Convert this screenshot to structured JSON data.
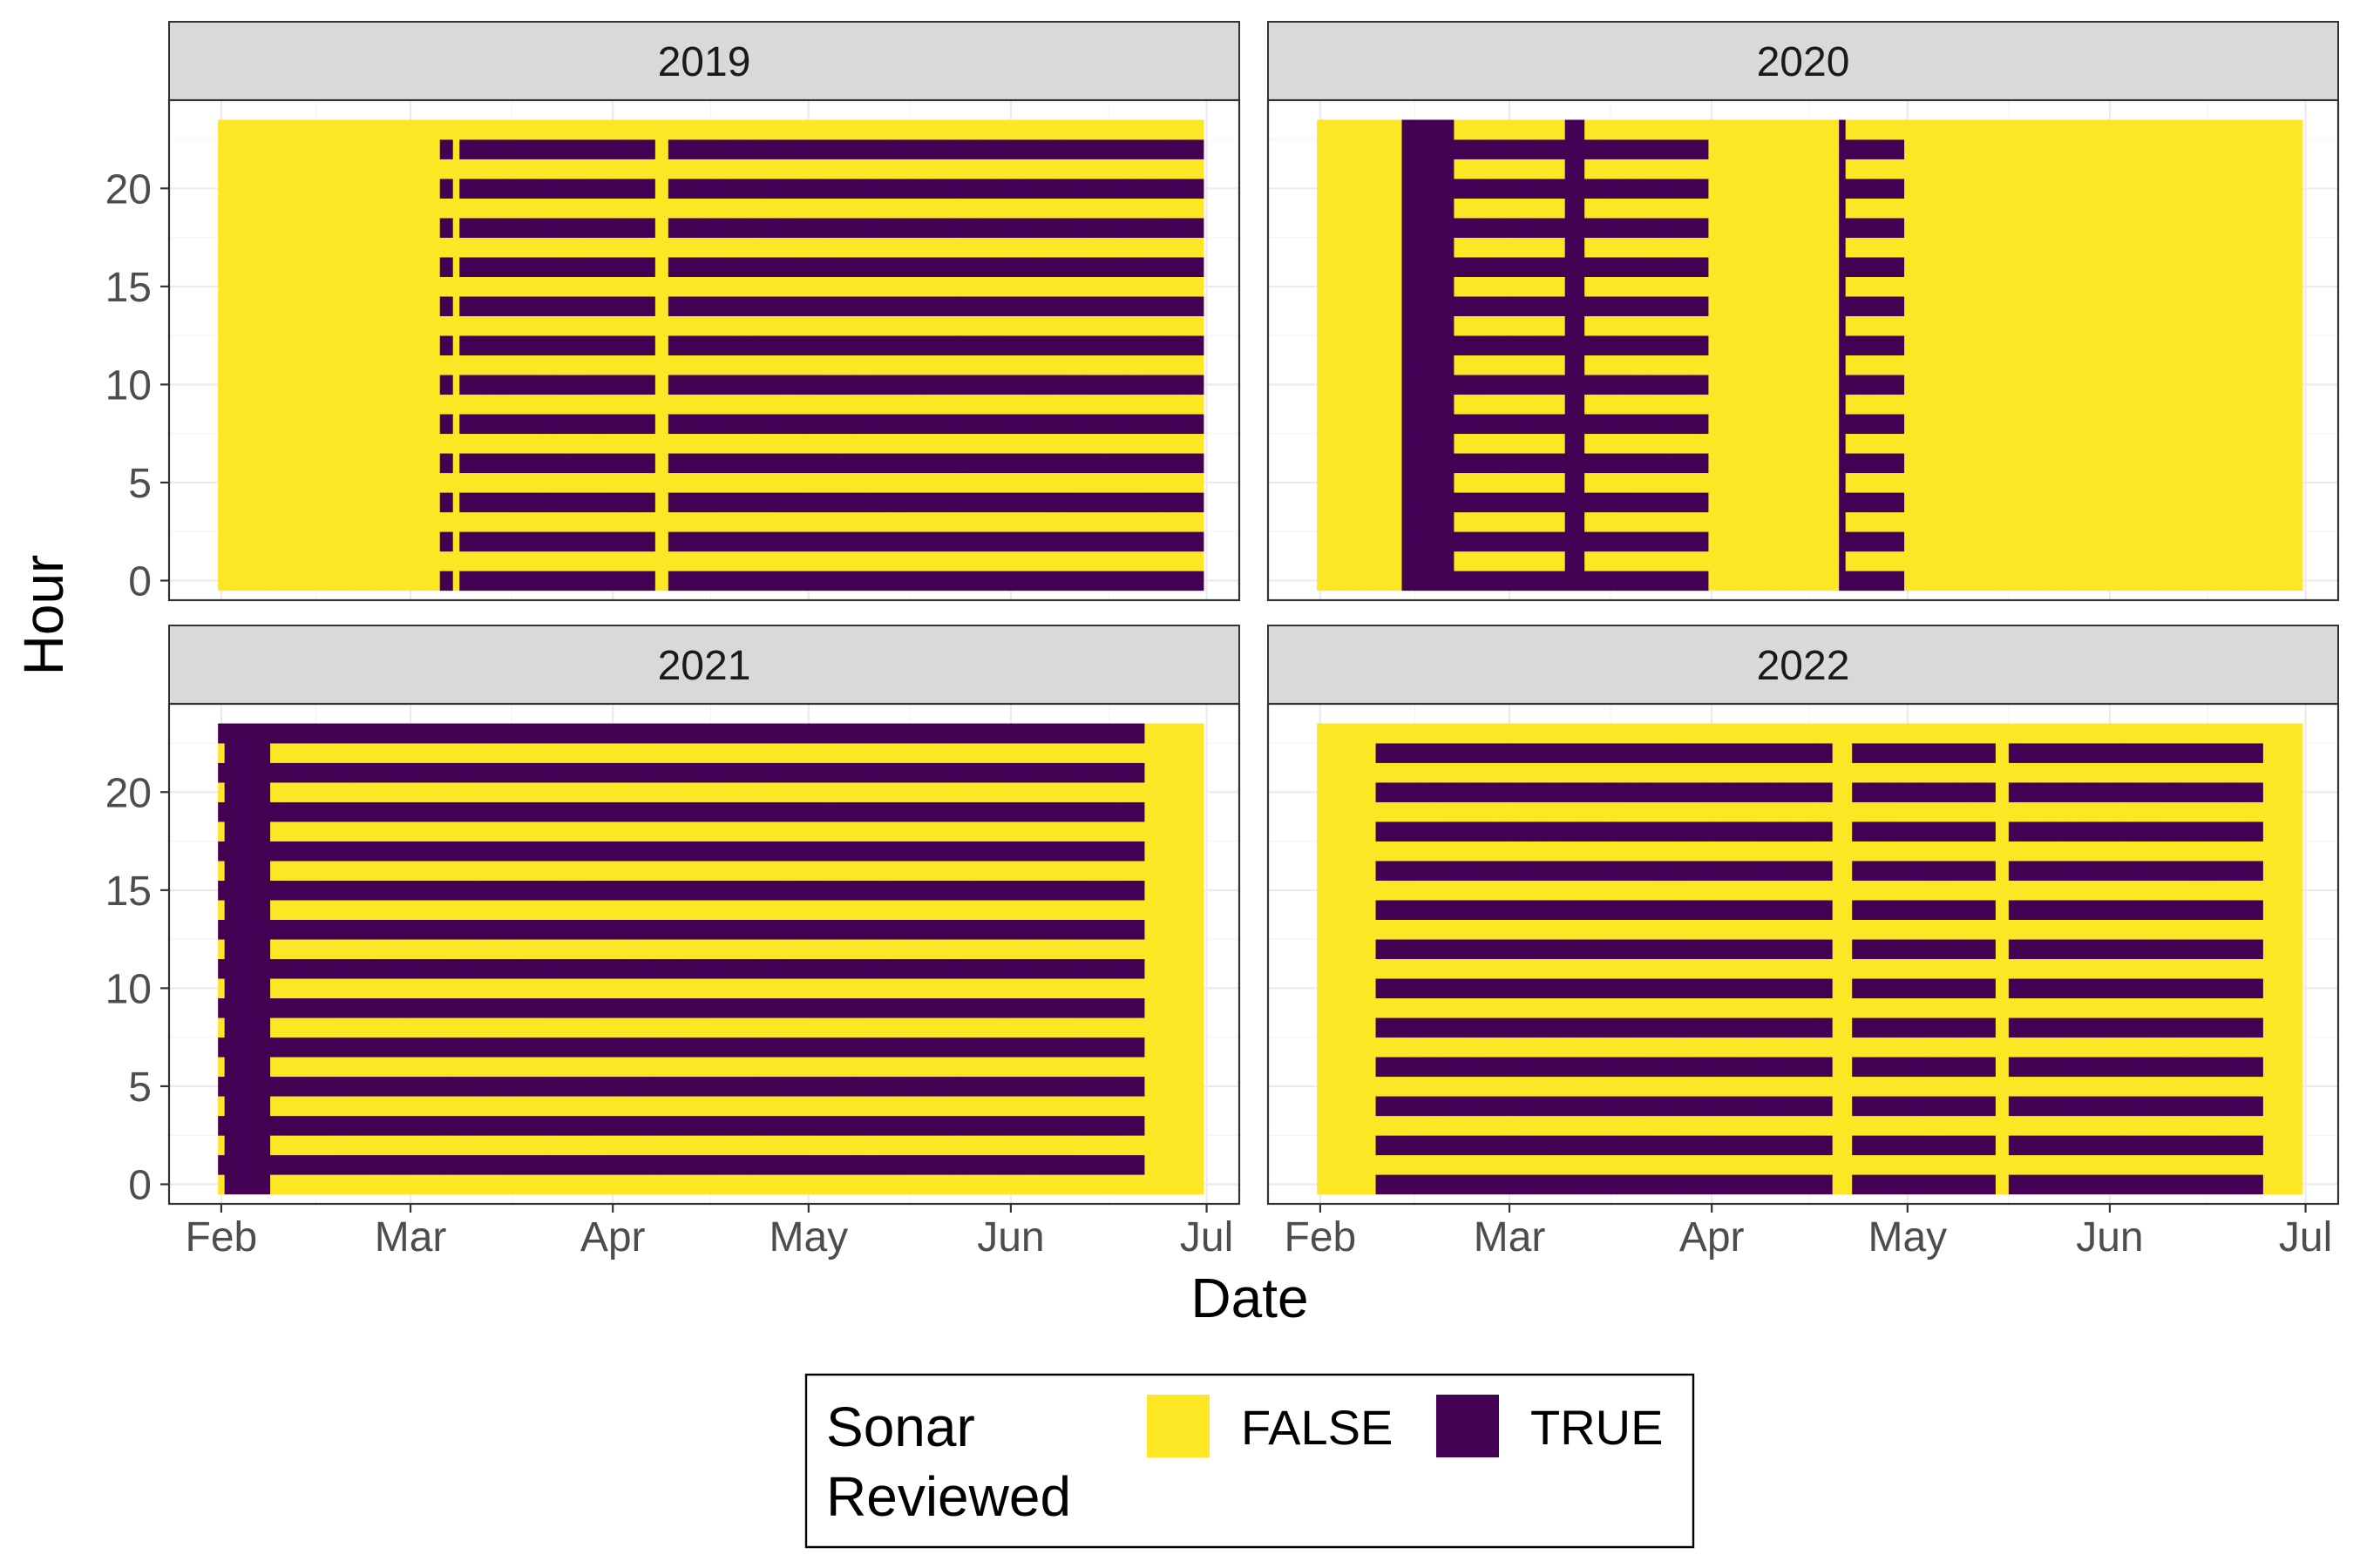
{
  "chart_data": {
    "type": "heatmap",
    "title": "",
    "xlabel": "Date",
    "ylabel": "Hour",
    "x_tick_labels": [
      "Feb",
      "Mar",
      "Apr",
      "May",
      "Jun",
      "Jul"
    ],
    "x_ticks": [
      "2000-02-01",
      "2000-03-01",
      "2000-04-01",
      "2000-05-01",
      "2000-06-01",
      "2000-07-01"
    ],
    "y_ticks": [
      0,
      5,
      10,
      15,
      20
    ],
    "y_range": [
      -1,
      24.5
    ],
    "x_range": [
      "2000-01-24",
      "2000-07-06"
    ],
    "grid": true,
    "legend": {
      "title": "Sonar\nReviewed",
      "title_lines": [
        "Sonar",
        "Reviewed"
      ],
      "position": "bottom",
      "entries": [
        {
          "label": "FALSE",
          "color": "#FDE725"
        },
        {
          "label": "TRUE",
          "color": "#440154"
        }
      ]
    },
    "cell_values": "Each tile = one hour of one day; value TRUE if sonar reviewed for that hour. Hours span 0-23 for dates Feb 1 - Jun 30.",
    "panels": [
      {
        "year": "2019",
        "start": "2019-02-01",
        "end": "2019-06-30",
        "default": "TRUE",
        "reviewed_hours": "even",
        "false_periods": [
          [
            "2019-02-01",
            "2019-03-05"
          ],
          [
            "2019-03-08",
            "2019-03-08"
          ],
          [
            "2019-04-08",
            "2019-04-09"
          ]
        ],
        "true_periods": []
      },
      {
        "year": "2020",
        "start": "2020-02-01",
        "end": "2020-06-30",
        "default": "TRUE",
        "reviewed_hours": "even",
        "false_periods": [
          [
            "2020-02-01",
            "2020-02-13"
          ],
          [
            "2020-04-01",
            "2020-04-20"
          ],
          [
            "2020-05-01",
            "2020-06-30"
          ]
        ],
        "true_periods": [
          [
            "2020-02-14",
            "2020-02-21"
          ],
          [
            "2020-03-10",
            "2020-03-12"
          ],
          [
            "2020-04-21",
            "2020-04-21"
          ]
        ]
      },
      {
        "year": "2021",
        "start": "2021-02-01",
        "end": "2021-06-30",
        "default": "TRUE",
        "reviewed_hours": "odd",
        "false_periods": [
          [
            "2021-06-22",
            "2021-06-30"
          ]
        ],
        "true_periods": [
          [
            "2021-02-02",
            "2021-02-08"
          ]
        ]
      },
      {
        "year": "2022",
        "start": "2022-02-01",
        "end": "2022-06-30",
        "default": "TRUE",
        "reviewed_hours": "even",
        "false_periods": [
          [
            "2022-02-01",
            "2022-02-09"
          ],
          [
            "2022-04-20",
            "2022-04-22"
          ],
          [
            "2022-05-15",
            "2022-05-16"
          ],
          [
            "2022-06-25",
            "2022-06-30"
          ]
        ],
        "true_periods": []
      }
    ]
  }
}
